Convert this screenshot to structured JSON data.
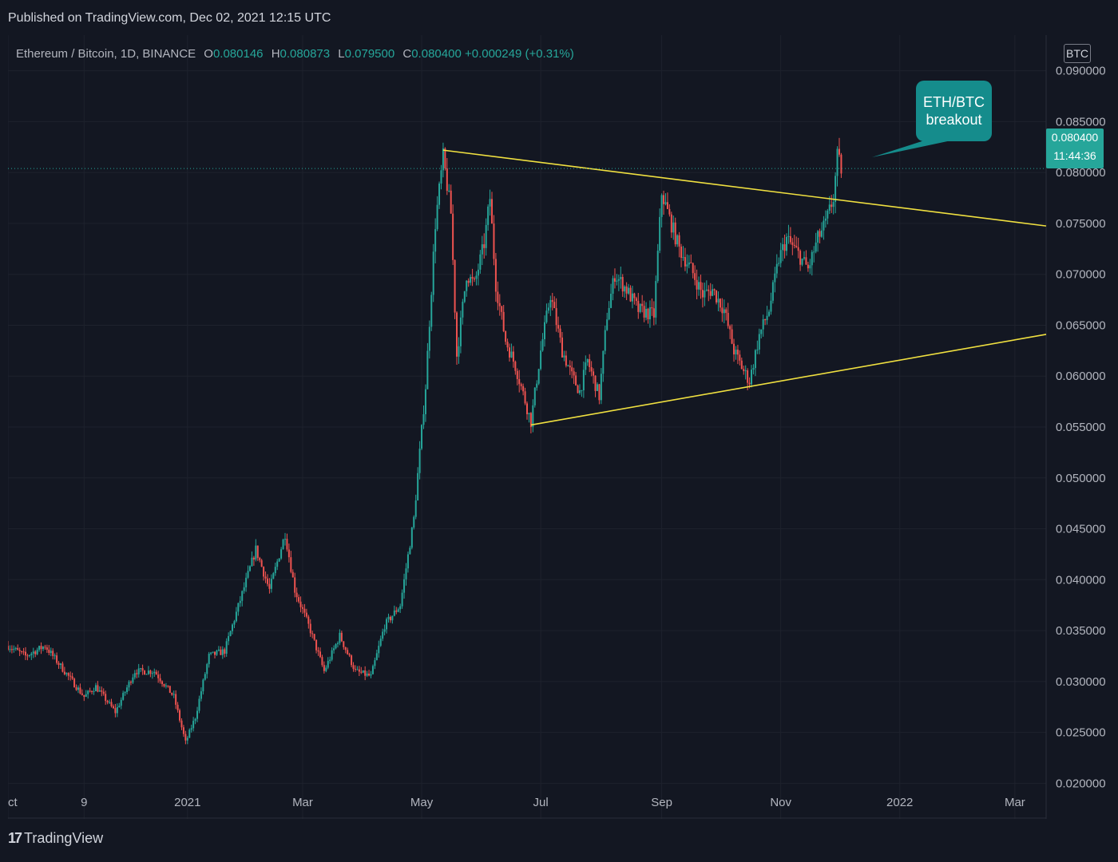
{
  "header": {
    "published": "Published on TradingView.com, Dec 02, 2021 12:15 UTC"
  },
  "legend": {
    "symbol": "Ethereum / Bitcoin, 1D, BINANCE",
    "o_label": "O",
    "o_value": "0.080146",
    "h_label": "H",
    "h_value": "0.080873",
    "l_label": "L",
    "l_value": "0.079500",
    "c_label": "C",
    "c_value": "0.080400",
    "change": "+0.000249 (+0.31%)"
  },
  "price_scale": {
    "currency_badge": "BTC"
  },
  "current_price": {
    "price": "0.080400",
    "countdown": "11:44:36"
  },
  "annotation": {
    "line1": "ETH/BTC",
    "line2": "breakout"
  },
  "footer": {
    "logo_mark": "17",
    "logo_text": "TradingView"
  },
  "colors": {
    "background": "#131722",
    "up": "#26a69a",
    "down": "#ef5350",
    "trendline": "#f0e040",
    "grid": "#1e222d",
    "callout": "#158c8c"
  },
  "chart_data": {
    "type": "candlestick",
    "title": "Ethereum / Bitcoin, 1D, BINANCE",
    "ylim": [
      0.0165,
      0.0935
    ],
    "y_ticks": [
      "0.090000",
      "0.085000",
      "0.080000",
      "0.075000",
      "0.070000",
      "0.065000",
      "0.060000",
      "0.055000",
      "0.050000",
      "0.045000",
      "0.040000",
      "0.035000",
      "0.030000",
      "0.025000",
      "0.020000"
    ],
    "y_tick_values": [
      0.09,
      0.085,
      0.08,
      0.075,
      0.07,
      0.065,
      0.06,
      0.055,
      0.05,
      0.045,
      0.04,
      0.035,
      0.03,
      0.025,
      0.02
    ],
    "x_range": [
      "2020-10-01",
      "2022-03-17"
    ],
    "x_ticks": [
      {
        "label": "Oct",
        "date": "2020-10-01"
      },
      {
        "label": "9",
        "date": "2020-11-09"
      },
      {
        "label": "2021",
        "date": "2021-01-01"
      },
      {
        "label": "Mar",
        "date": "2021-03-01"
      },
      {
        "label": "May",
        "date": "2021-05-01"
      },
      {
        "label": "Jul",
        "date": "2021-07-01"
      },
      {
        "label": "Sep",
        "date": "2021-09-01"
      },
      {
        "label": "Nov",
        "date": "2021-11-01"
      },
      {
        "label": "2022",
        "date": "2022-01-01"
      },
      {
        "label": "Mar",
        "date": "2022-03-01"
      }
    ],
    "close_path": [
      {
        "date": "2020-10-01",
        "close": 0.0335
      },
      {
        "date": "2020-10-10",
        "close": 0.0325
      },
      {
        "date": "2020-10-20",
        "close": 0.0335
      },
      {
        "date": "2020-11-01",
        "close": 0.0305
      },
      {
        "date": "2020-11-09",
        "close": 0.0285
      },
      {
        "date": "2020-11-15",
        "close": 0.0295
      },
      {
        "date": "2020-11-25",
        "close": 0.027
      },
      {
        "date": "2020-12-05",
        "close": 0.031
      },
      {
        "date": "2020-12-15",
        "close": 0.031
      },
      {
        "date": "2020-12-25",
        "close": 0.0285
      },
      {
        "date": "2020-12-31",
        "close": 0.024
      },
      {
        "date": "2021-01-05",
        "close": 0.0265
      },
      {
        "date": "2021-01-12",
        "close": 0.0325
      },
      {
        "date": "2021-01-20",
        "close": 0.033
      },
      {
        "date": "2021-01-28",
        "close": 0.038
      },
      {
        "date": "2021-02-05",
        "close": 0.043
      },
      {
        "date": "2021-02-12",
        "close": 0.039
      },
      {
        "date": "2021-02-20",
        "close": 0.0445
      },
      {
        "date": "2021-02-25",
        "close": 0.039
      },
      {
        "date": "2021-03-05",
        "close": 0.035
      },
      {
        "date": "2021-03-12",
        "close": 0.031
      },
      {
        "date": "2021-03-20",
        "close": 0.0345
      },
      {
        "date": "2021-03-28",
        "close": 0.031
      },
      {
        "date": "2021-04-05",
        "close": 0.0305
      },
      {
        "date": "2021-04-12",
        "close": 0.0355
      },
      {
        "date": "2021-04-20",
        "close": 0.0375
      },
      {
        "date": "2021-04-27",
        "close": 0.046
      },
      {
        "date": "2021-05-03",
        "close": 0.059
      },
      {
        "date": "2021-05-08",
        "close": 0.075
      },
      {
        "date": "2021-05-12",
        "close": 0.0815
      },
      {
        "date": "2021-05-16",
        "close": 0.076
      },
      {
        "date": "2021-05-19",
        "close": 0.062
      },
      {
        "date": "2021-05-24",
        "close": 0.07
      },
      {
        "date": "2021-05-28",
        "close": 0.069
      },
      {
        "date": "2021-06-02",
        "close": 0.073
      },
      {
        "date": "2021-06-05",
        "close": 0.0775
      },
      {
        "date": "2021-06-08",
        "close": 0.069
      },
      {
        "date": "2021-06-13",
        "close": 0.0635
      },
      {
        "date": "2021-06-18",
        "close": 0.061
      },
      {
        "date": "2021-06-26",
        "close": 0.0555
      },
      {
        "date": "2021-07-01",
        "close": 0.0625
      },
      {
        "date": "2021-07-06",
        "close": 0.068
      },
      {
        "date": "2021-07-12",
        "close": 0.0625
      },
      {
        "date": "2021-07-17",
        "close": 0.06
      },
      {
        "date": "2021-07-21",
        "close": 0.0585
      },
      {
        "date": "2021-07-25",
        "close": 0.0615
      },
      {
        "date": "2021-07-31",
        "close": 0.058
      },
      {
        "date": "2021-08-04",
        "close": 0.066
      },
      {
        "date": "2021-08-08",
        "close": 0.07
      },
      {
        "date": "2021-08-14",
        "close": 0.0685
      },
      {
        "date": "2021-08-20",
        "close": 0.0665
      },
      {
        "date": "2021-08-28",
        "close": 0.066
      },
      {
        "date": "2021-09-01",
        "close": 0.078
      },
      {
        "date": "2021-09-05",
        "close": 0.0755
      },
      {
        "date": "2021-09-10",
        "close": 0.0725
      },
      {
        "date": "2021-09-16",
        "close": 0.0705
      },
      {
        "date": "2021-09-22",
        "close": 0.068
      },
      {
        "date": "2021-09-27",
        "close": 0.0685
      },
      {
        "date": "2021-10-03",
        "close": 0.0665
      },
      {
        "date": "2021-10-08",
        "close": 0.0625
      },
      {
        "date": "2021-10-13",
        "close": 0.0605
      },
      {
        "date": "2021-10-16",
        "close": 0.0595
      },
      {
        "date": "2021-10-21",
        "close": 0.064
      },
      {
        "date": "2021-10-26",
        "close": 0.0665
      },
      {
        "date": "2021-10-31",
        "close": 0.0715
      },
      {
        "date": "2021-11-04",
        "close": 0.0735
      },
      {
        "date": "2021-11-10",
        "close": 0.072
      },
      {
        "date": "2021-11-15",
        "close": 0.0705
      },
      {
        "date": "2021-11-20",
        "close": 0.0735
      },
      {
        "date": "2021-11-24",
        "close": 0.075
      },
      {
        "date": "2021-11-28",
        "close": 0.0775
      },
      {
        "date": "2021-11-30",
        "close": 0.0815
      },
      {
        "date": "2021-12-02",
        "close": 0.0804
      }
    ],
    "trendlines": [
      {
        "name": "upper",
        "from": {
          "date": "2021-05-12",
          "price": 0.0822
        },
        "to": {
          "date": "2022-03-17",
          "price": 0.07475
        }
      },
      {
        "name": "lower",
        "from": {
          "date": "2021-06-26",
          "price": 0.0552
        },
        "to": {
          "date": "2022-03-17",
          "price": 0.0641
        }
      }
    ],
    "last_price_line": 0.0804
  }
}
